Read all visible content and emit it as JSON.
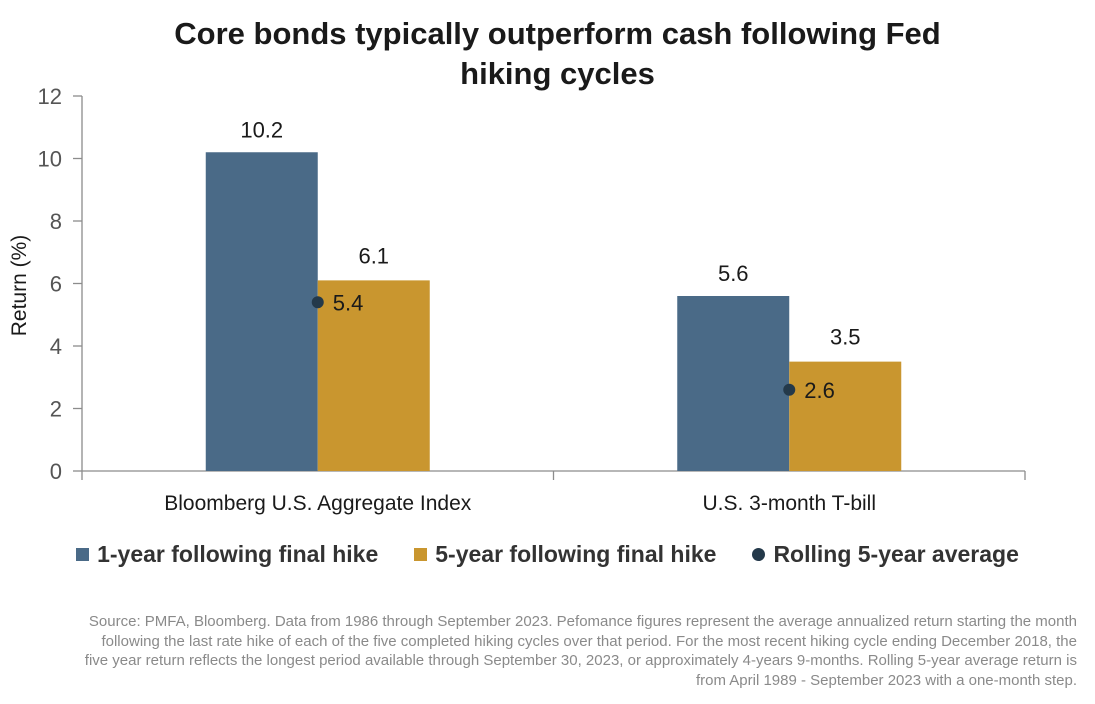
{
  "chart_data": {
    "type": "bar",
    "title": "Core bonds typically outperform cash following Fed hiking cycles",
    "ylabel": "Return (%)",
    "xlabel": "",
    "ylim": [
      0,
      12
    ],
    "yticks": [
      0,
      2,
      4,
      6,
      8,
      10,
      12
    ],
    "categories": [
      "Bloomberg U.S. Aggregate Index",
      "U.S. 3-month T-bill"
    ],
    "series": [
      {
        "name": "1-year following final hike",
        "type": "bar",
        "color": "#4a6a87",
        "values": [
          10.2,
          5.6
        ],
        "labels": [
          "10.2",
          "5.6"
        ]
      },
      {
        "name": "5-year following final hike",
        "type": "bar",
        "color": "#c9962f",
        "values": [
          6.1,
          3.5
        ],
        "labels": [
          "6.1",
          "3.5"
        ]
      },
      {
        "name": "Rolling 5-year average",
        "type": "scatter",
        "color": "#24394a",
        "values": [
          5.4,
          2.6
        ],
        "labels": [
          "5.4",
          "2.6"
        ]
      }
    ],
    "grid": false,
    "legend_position": "bottom"
  },
  "source_note": "Source: PMFA, Bloomberg. Data from 1986 through September 2023. Pefomance figures represent the average annualized return starting the month following the last rate hike of each of the five completed hiking cycles over that period. For the most recent hiking cycle ending December 2018, the five year return reflects the longest period available through September 30, 2023, or approximately 4-years 9-months. Rolling 5-year average return is from April 1989 - September 2023 with a one-month step."
}
